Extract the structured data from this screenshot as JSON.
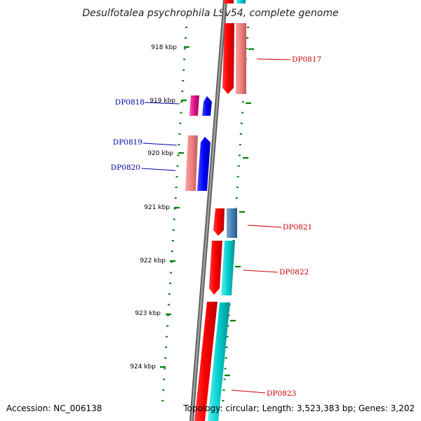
{
  "title": "Desulfotalea psychrophila LSv54, complete genome",
  "footer": {
    "accession": "Accession: NC_006138",
    "topology": "Topology: circular; Length: 3,523,383 bp; Genes: 3,202"
  },
  "ticks": [
    {
      "label": "918 kbp"
    },
    {
      "label": "919 kbp"
    },
    {
      "label": "920 kbp"
    },
    {
      "label": "921 kbp"
    },
    {
      "label": "922 kbp"
    },
    {
      "label": "923 kbp"
    },
    {
      "label": "924 kbp"
    }
  ],
  "genes": [
    {
      "id": "DP0817",
      "strand": "forward",
      "label_color": "#cc0000"
    },
    {
      "id": "DP0818",
      "strand": "reverse",
      "label_color": "#0000aa"
    },
    {
      "id": "DP0819",
      "strand": "reverse",
      "label_color": "#0000aa"
    },
    {
      "id": "DP0820",
      "strand": "reverse",
      "label_color": "#0000aa"
    },
    {
      "id": "DP0821",
      "strand": "forward",
      "label_color": "#cc0000"
    },
    {
      "id": "DP0822",
      "strand": "forward",
      "label_color": "#cc0000"
    },
    {
      "id": "DP0823",
      "strand": "forward",
      "label_color": "#cc0000"
    }
  ],
  "colors": {
    "backbone": "#808080",
    "tick": "#008000",
    "forward_cds": "#ff0000",
    "forward_rna": "#f08080",
    "forward_cyan": "#00cccc",
    "forward_steel": "#4682b4",
    "reverse_cds": "#0000ff",
    "reverse_pink": "#e0108a",
    "reverse_salmon": "#f08080"
  }
}
